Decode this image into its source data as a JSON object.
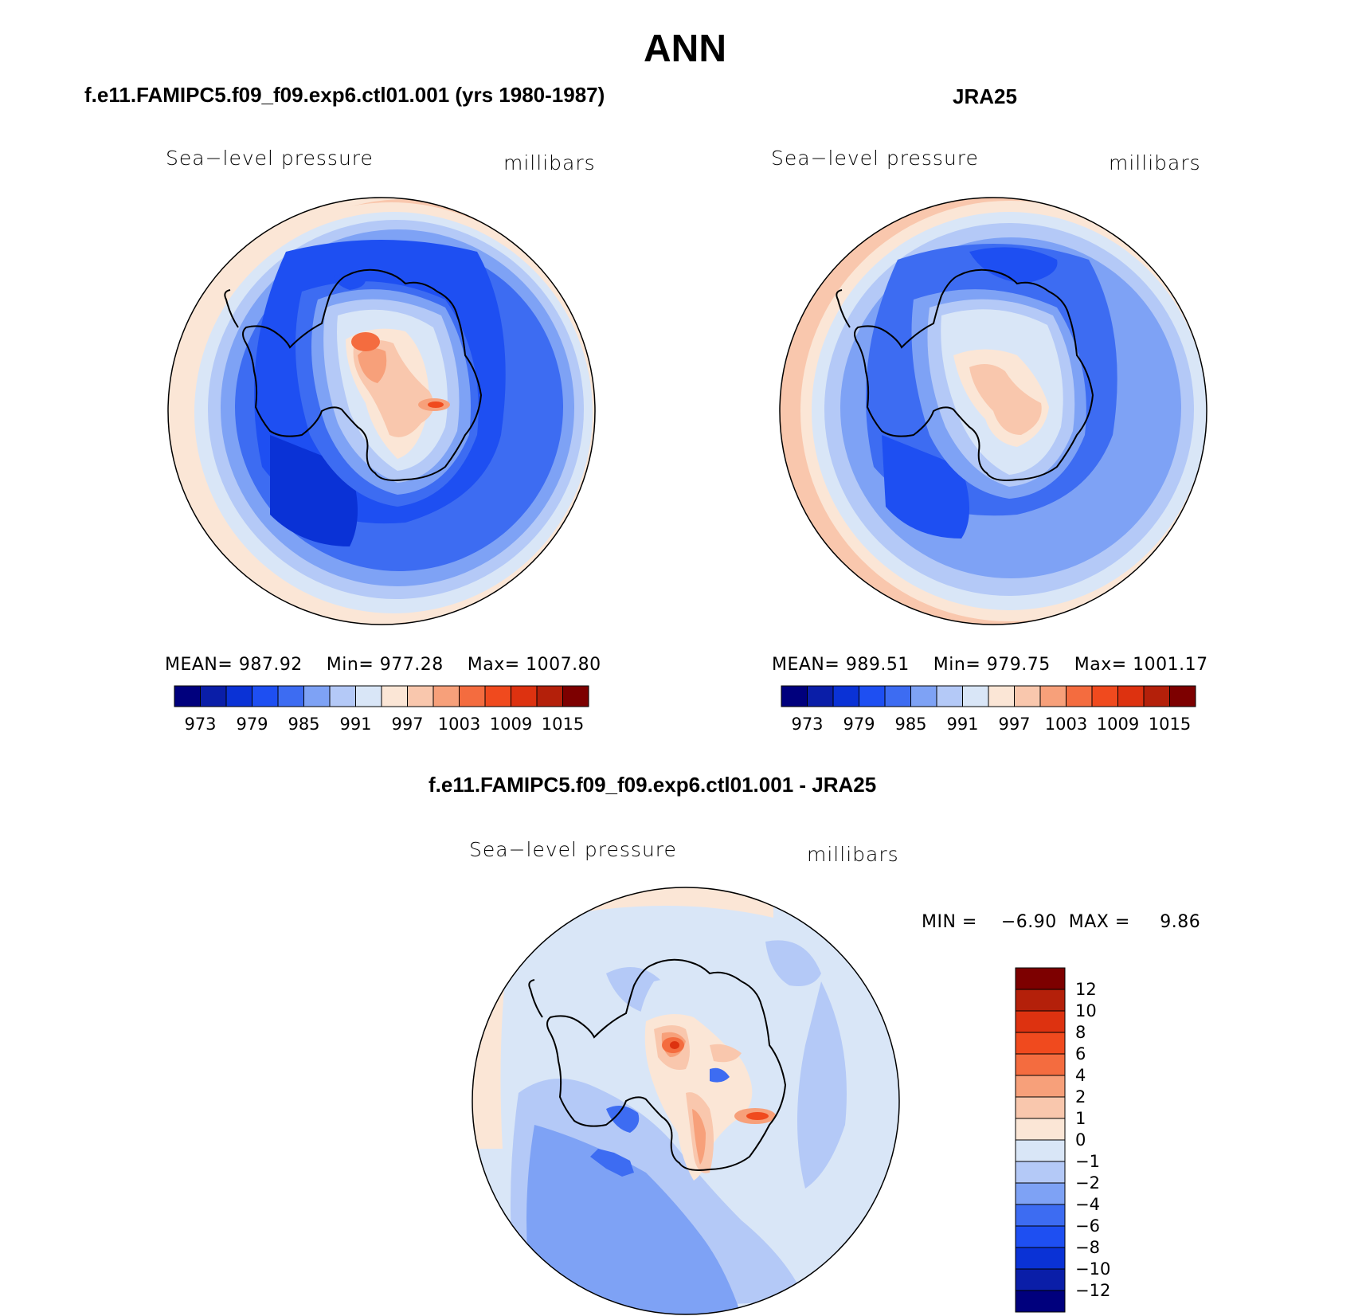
{
  "figure": {
    "season": "ANN",
    "panels": [
      {
        "id": "model",
        "title": "f.e11.FAMIPC5.f09_f09.exp6.ctl01.001 (yrs 1980-1987)",
        "variable": "Sea−level pressure",
        "units": "millibars",
        "mean_label": "MEAN=",
        "mean": "987.92",
        "min_label": "Min=",
        "min": "977.28",
        "max_label": "Max=",
        "max": "1007.80",
        "colorbar_ticks": [
          "973",
          "979",
          "985",
          "991",
          "997",
          "1003",
          "1009",
          "1015"
        ]
      },
      {
        "id": "obs",
        "title": "JRA25",
        "variable": "Sea−level pressure",
        "units": "millibars",
        "mean_label": "MEAN=",
        "mean": "989.51",
        "min_label": "Min=",
        "min": "979.75",
        "max_label": "Max=",
        "max": "1001.17",
        "colorbar_ticks": [
          "973",
          "979",
          "985",
          "991",
          "997",
          "1003",
          "1009",
          "1015"
        ]
      }
    ],
    "diff": {
      "title": "f.e11.FAMIPC5.f09_f09.exp6.ctl01.001 - JRA25",
      "variable": "Sea−level pressure",
      "units": "millibars",
      "min_label": "MIN =",
      "min": "−6.90",
      "max_label": "MAX =",
      "max": "9.86",
      "colorbar_ticks": [
        "12",
        "10",
        "8",
        "6",
        "4",
        "2",
        "1",
        "0",
        "−1",
        "−2",
        "−4",
        "−6",
        "−8",
        "−10",
        "−12"
      ]
    },
    "colors": {
      "abs_scale": [
        "#00007d",
        "#0a1ea8",
        "#0a32d6",
        "#1e4ff2",
        "#3d6cf2",
        "#7ea2f5",
        "#b4c9f7",
        "#d9e6f7",
        "#fbe6d6",
        "#f9c7ad",
        "#f7a07a",
        "#f46c3f",
        "#f04a1e",
        "#dd3210",
        "#b4200a",
        "#7d0000"
      ],
      "diff_scale": [
        "#7d0000",
        "#b4200a",
        "#dd3210",
        "#f04a1e",
        "#f46c3f",
        "#f7a07a",
        "#f9c7ad",
        "#fbe6d6",
        "#d9e6f7",
        "#b4c9f7",
        "#7ea2f5",
        "#3d6cf2",
        "#1e4ff2",
        "#0a32d6",
        "#0a1ea8",
        "#00007d"
      ]
    }
  }
}
